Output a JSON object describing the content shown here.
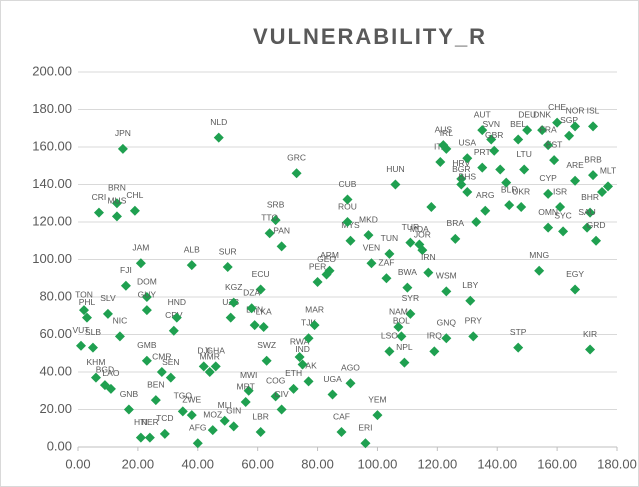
{
  "chart_data": {
    "type": "scatter",
    "title": "VULNERABILITY_R",
    "color": "#1fa050",
    "grid": true,
    "xlim": [
      0,
      180
    ],
    "ylim": [
      0,
      200
    ],
    "xticks": [
      {
        "value": 0,
        "label": "0.00"
      },
      {
        "value": 20,
        "label": "20.00"
      },
      {
        "value": 40,
        "label": "40.00"
      },
      {
        "value": 60,
        "label": "60.00"
      },
      {
        "value": 80,
        "label": "80.00"
      },
      {
        "value": 100,
        "label": "100.00"
      },
      {
        "value": 120,
        "label": "120.00"
      },
      {
        "value": 140,
        "label": "140.00"
      },
      {
        "value": 160,
        "label": "160.00"
      },
      {
        "value": 180,
        "label": "180.00"
      }
    ],
    "yticks": [
      {
        "value": 0,
        "label": "0.00"
      },
      {
        "value": 20,
        "label": "20.00"
      },
      {
        "value": 40,
        "label": "40.00"
      },
      {
        "value": 60,
        "label": "60.00"
      },
      {
        "value": 80,
        "label": "80.00"
      },
      {
        "value": 100,
        "label": "100.00"
      },
      {
        "value": 120,
        "label": "120.00"
      },
      {
        "value": 140,
        "label": "140.00"
      },
      {
        "value": 160,
        "label": "160.00"
      },
      {
        "value": 180,
        "label": "180.00"
      },
      {
        "value": 200,
        "label": "200.00"
      }
    ],
    "point_labels": [
      "JPN",
      "NLD",
      "GRC",
      "CRI",
      "BRN",
      "MUS",
      "CHL",
      "SRB",
      "TTO",
      "PAN",
      "JAM",
      "ALB",
      "SUR",
      "ECU",
      "FJI",
      "DOM",
      "GUY",
      "TON",
      "PHL",
      "SLV",
      "CPV",
      "HND",
      "NIC",
      "VUT",
      "SLB",
      "KHM",
      "BGD",
      "LAO",
      "GMB",
      "CMR",
      "SEN",
      "BEN",
      "GNB",
      "HTI",
      "NER",
      "TCD",
      "TGO",
      "ZWE",
      "AFG",
      "MOZ",
      "MLI",
      "GIN",
      "DJI",
      "MMR",
      "GHA",
      "MWI",
      "MRT",
      "LBR",
      "COG",
      "CIV",
      "ETH",
      "UGA",
      "AGO",
      "RWA",
      "PAK",
      "SWZ",
      "LKA",
      "BTN",
      "UZB",
      "IND",
      "TJK",
      "MAR",
      "CAF",
      "ERI",
      "YEM",
      "KGZ",
      "DZA",
      "GEO",
      "PER",
      "ARM",
      "MYS",
      "ROU",
      "CUB",
      "MKD",
      "HUN",
      "TUR",
      "MDA",
      "JOR",
      "IRN",
      "ZAF",
      "VEN",
      "TUN",
      "WSM",
      "SYR",
      "NAM",
      "BOL",
      "LSO",
      "NPL",
      "IRQ",
      "GNQ",
      "LBY",
      "PRY",
      "STP",
      "KIR",
      "MNG",
      "EGY",
      "BWA",
      "ARG",
      "BGR",
      "HRV",
      "BHS",
      "ITA",
      "IRL",
      "AUS",
      "USA",
      "PRT",
      "AUT",
      "SVN",
      "GBR",
      "BEL",
      "DEU",
      "DNK",
      "FRA",
      "CHE",
      "NOR",
      "ISL",
      "SGP",
      "EST",
      "CYP",
      "ARE",
      "ISR",
      "LTU",
      "BRB",
      "MLT",
      "BHR",
      "SAU",
      "GRD",
      "UKR",
      "OMN",
      "SYC",
      "BLR",
      "BRA",
      null,
      null,
      null,
      null,
      null
    ],
    "x": [
      15,
      47,
      73,
      7,
      13,
      13,
      19,
      66,
      64,
      68,
      21,
      38,
      50,
      61,
      16,
      23,
      23,
      2,
      3,
      10,
      32,
      33,
      14,
      1,
      5,
      6,
      9,
      11,
      23,
      28,
      31,
      26,
      17,
      21,
      24,
      29,
      35,
      38,
      40,
      45,
      49,
      52,
      42,
      44,
      46,
      57,
      56,
      61,
      66,
      68,
      72,
      85,
      91,
      74,
      77,
      63,
      62,
      59,
      51,
      75,
      77,
      79,
      88,
      96,
      100,
      52,
      58,
      83,
      80,
      84,
      91,
      90,
      90,
      97,
      106,
      111,
      114,
      115,
      117,
      103,
      98,
      104,
      123,
      111,
      107,
      108,
      104,
      109,
      119,
      123,
      131,
      132,
      147,
      171,
      154,
      166,
      110,
      136,
      128,
      128,
      130,
      121,
      123,
      122,
      130,
      135,
      135,
      138,
      139,
      147,
      150,
      155,
      157,
      160,
      166,
      172,
      164,
      159,
      157,
      166,
      161,
      149,
      172,
      177,
      171,
      170,
      173,
      148,
      157,
      162,
      144,
      126,
      175,
      143,
      141,
      118,
      133
    ],
    "values": [
      159,
      165,
      146,
      125,
      130,
      123,
      126,
      121,
      114,
      107,
      98,
      97,
      96,
      84,
      86,
      80,
      73,
      73,
      69,
      71,
      62,
      69,
      59,
      54,
      53,
      37,
      33,
      31,
      46,
      40,
      37,
      25,
      20,
      5,
      5,
      7,
      19,
      17,
      2,
      9,
      14,
      11,
      43,
      40,
      43,
      30,
      24,
      8,
      27,
      20,
      31,
      28,
      34,
      48,
      35,
      46,
      64,
      65,
      69,
      44,
      58,
      65,
      8,
      2,
      17,
      77,
      74,
      92,
      88,
      94,
      110,
      120,
      132,
      113,
      140,
      109,
      108,
      105,
      93,
      90,
      98,
      103,
      83,
      71,
      64,
      59,
      51,
      45,
      51,
      58,
      78,
      59,
      53,
      52,
      94,
      84,
      85,
      126,
      140,
      143,
      136,
      152,
      159,
      161,
      154,
      149,
      169,
      164,
      158,
      164,
      169,
      169,
      161,
      173,
      171,
      171,
      166,
      153,
      135,
      142,
      128,
      148,
      145,
      139,
      125,
      117,
      110,
      128,
      117,
      115,
      129,
      111,
      136,
      141,
      148,
      128,
      120
    ]
  }
}
